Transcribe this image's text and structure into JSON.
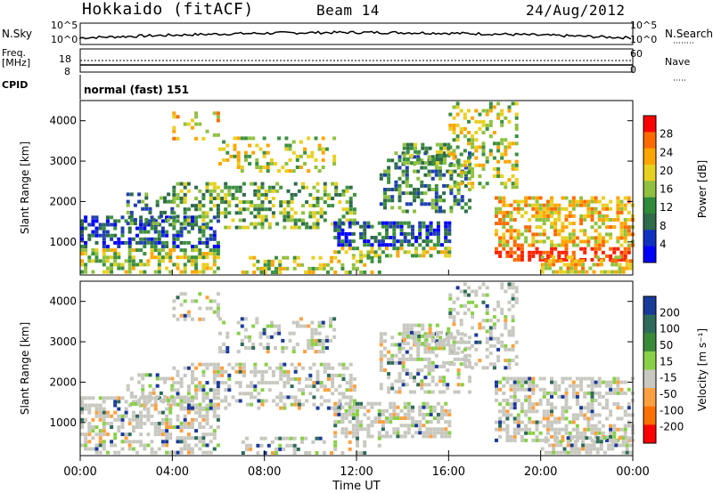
{
  "header": {
    "title": "Hokkaido (fitACF)",
    "beam": "Beam 14",
    "date": "24/Aug/2012"
  },
  "status_panels": {
    "nsky_label": "N.Sky",
    "nsearch_label": "N.Search",
    "freq_label_1": "Freq.",
    "freq_label_2": "[MHz]",
    "nave_label": "Nave",
    "cpid_label": "CPID",
    "cpid_value": "normal (fast) 151",
    "left_ticks_top": [
      "10^5",
      "10^0"
    ],
    "right_ticks_top": [
      "10^5",
      "10^0"
    ],
    "left_ticks_freq": [
      "18",
      "8"
    ],
    "right_ticks_freq": [
      "60",
      "0"
    ]
  },
  "chart_data": [
    {
      "type": "heatmap",
      "name": "power",
      "ylabel": "Slant Range [km]",
      "ylim": [
        180,
        4500
      ],
      "y_ticks": [
        "4000",
        "3000",
        "2000",
        "1000"
      ],
      "colorbar_label": "Power [dB]",
      "colorbar_ticks": [
        "28",
        "24",
        "20",
        "16",
        "12",
        "8",
        "4"
      ],
      "colorbar_colors": [
        "#ff0000",
        "#ff6a00",
        "#ffa500",
        "#e8d020",
        "#90c040",
        "#2e8b3a",
        "#2e6b4a",
        "#1030c0",
        "#0000ff"
      ]
    },
    {
      "type": "heatmap",
      "name": "velocity",
      "ylabel": "Slant Range [km]",
      "ylim": [
        180,
        4500
      ],
      "y_ticks": [
        "4000",
        "3000",
        "2000",
        "1000"
      ],
      "colorbar_label": "Velocity [m s⁻¹]",
      "colorbar_ticks": [
        "200",
        "100",
        "50",
        "15",
        "-15",
        "-50",
        "-100",
        "-200"
      ],
      "colorbar_colors": [
        "#1a3a9a",
        "#2e6b5a",
        "#3a8a3a",
        "#88d048",
        "#c8c8c0",
        "#ffa040",
        "#ff7000",
        "#ff0000"
      ]
    }
  ],
  "x_axis": {
    "xlabel": "Time UT",
    "ticks": [
      "00:00",
      "04:00",
      "08:00",
      "12:00",
      "16:00",
      "20:00",
      "00:00"
    ]
  }
}
